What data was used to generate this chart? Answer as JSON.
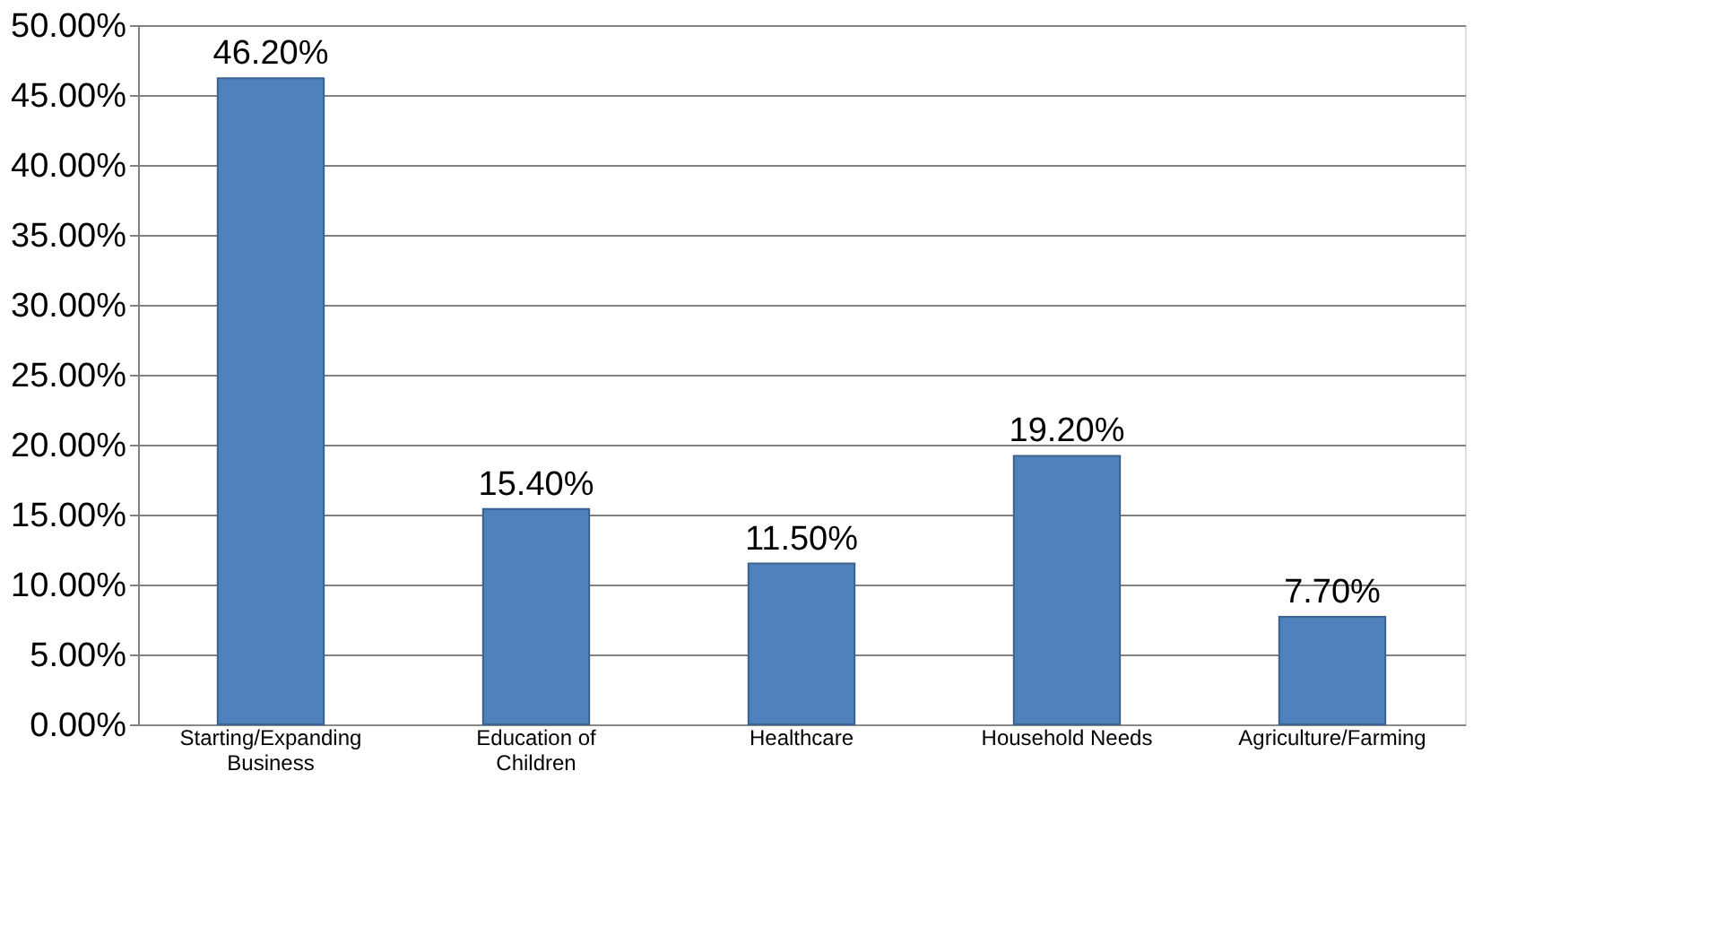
{
  "chart_data": {
    "type": "bar",
    "categories": [
      "Starting/Expanding Business",
      "Education of Children",
      "Healthcare",
      "Household Needs",
      "Agriculture/Farming"
    ],
    "values": [
      46.2,
      15.4,
      11.5,
      19.2,
      7.7
    ],
    "value_labels": [
      "46.20%",
      "15.40%",
      "11.50%",
      "19.20%",
      "7.70%"
    ],
    "color": "#4f81bd",
    "ylim": [
      0,
      50
    ],
    "yticks": [
      {
        "value": 0,
        "label": "0.00%"
      },
      {
        "value": 5,
        "label": "5.00%"
      },
      {
        "value": 10,
        "label": "10.00%"
      },
      {
        "value": 15,
        "label": "15.00%"
      },
      {
        "value": 20,
        "label": "20.00%"
      },
      {
        "value": 25,
        "label": "25.00%"
      },
      {
        "value": 30,
        "label": "30.00%"
      },
      {
        "value": 35,
        "label": "35.00%"
      },
      {
        "value": 40,
        "label": "40.00%"
      },
      {
        "value": 45,
        "label": "45.00%"
      },
      {
        "value": 50,
        "label": "50.00%"
      }
    ],
    "grid": "y"
  }
}
